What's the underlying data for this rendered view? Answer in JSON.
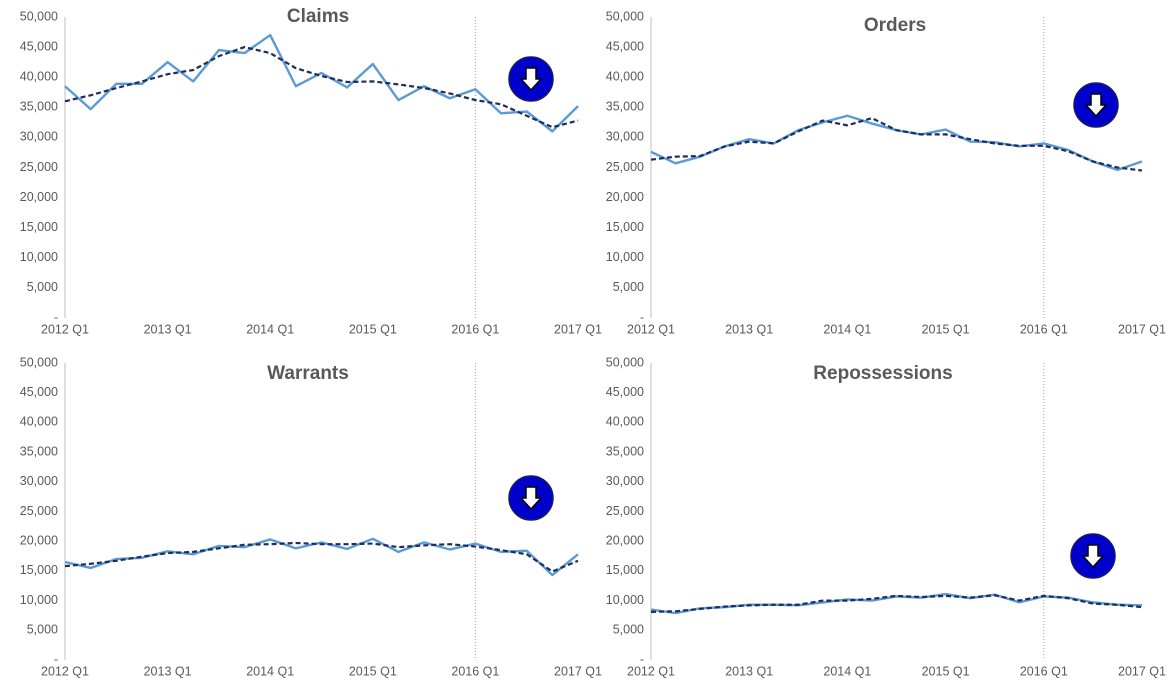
{
  "chart_data": [
    {
      "type": "line",
      "title": "Claims",
      "categories": [
        "2012 Q1",
        null,
        null,
        null,
        "2013 Q1",
        null,
        null,
        null,
        "2014 Q1",
        null,
        null,
        null,
        "2015 Q1",
        null,
        null,
        null,
        "2016 Q1",
        null,
        null,
        null,
        "2017 Q1"
      ],
      "series": [
        {
          "color": "#5b9bd5",
          "values": [
            38500,
            34700,
            38900,
            38900,
            42500,
            39300,
            44500,
            44000,
            47000,
            38500,
            40700,
            38300,
            42200,
            36200,
            38500,
            36500,
            38000,
            34000,
            34300,
            31000,
            35200
          ]
        },
        {
          "color": "#1f2d5a",
          "dash": true,
          "values": [
            36000,
            37000,
            38200,
            39300,
            40500,
            41200,
            43500,
            45000,
            44000,
            41500,
            40200,
            39200,
            39300,
            38800,
            38200,
            37300,
            36200,
            35500,
            33600,
            31700,
            32800
          ]
        }
      ],
      "ylim": [
        0,
        50000
      ],
      "yticks": [
        {
          "value": 0,
          "label": "-"
        },
        {
          "value": 5000,
          "label": "5,000"
        },
        {
          "value": 10000,
          "label": "10,000"
        },
        {
          "value": 15000,
          "label": "15,000"
        },
        {
          "value": 20000,
          "label": "20,000"
        },
        {
          "value": 25000,
          "label": "25,000"
        },
        {
          "value": 30000,
          "label": "30,000"
        },
        {
          "value": 35000,
          "label": "35,000"
        },
        {
          "value": 40000,
          "label": "40,000"
        },
        {
          "value": 45000,
          "label": "45,000"
        },
        {
          "value": 50000,
          "label": "50,000"
        }
      ],
      "vline": "2016 Q1"
    },
    {
      "type": "line",
      "title": "Orders",
      "categories": [
        "2012 Q1",
        null,
        null,
        null,
        "2013 Q1",
        null,
        null,
        null,
        "2014 Q1",
        null,
        null,
        null,
        "2015 Q1",
        null,
        null,
        null,
        "2016 Q1",
        null,
        null,
        null,
        "2017 Q1"
      ],
      "series": [
        {
          "color": "#5b9bd5",
          "values": [
            27600,
            25700,
            26800,
            28500,
            29700,
            29000,
            31200,
            32500,
            33600,
            32300,
            31200,
            30500,
            31300,
            29300,
            29200,
            28500,
            29000,
            27900,
            26000,
            24600,
            26000
          ]
        },
        {
          "color": "#1f2d5a",
          "dash": true,
          "values": [
            26300,
            26800,
            26900,
            28500,
            29300,
            29000,
            31000,
            32800,
            32000,
            33200,
            31200,
            30500,
            30500,
            29700,
            29000,
            28600,
            28600,
            27700,
            26000,
            25000,
            24500
          ]
        }
      ],
      "ylim": [
        0,
        50000
      ],
      "yticks": [
        {
          "value": 0,
          "label": "-"
        },
        {
          "value": 5000,
          "label": "5,000"
        },
        {
          "value": 10000,
          "label": "10,000"
        },
        {
          "value": 15000,
          "label": "15,000"
        },
        {
          "value": 20000,
          "label": "20,000"
        },
        {
          "value": 25000,
          "label": "25,000"
        },
        {
          "value": 30000,
          "label": "30,000"
        },
        {
          "value": 35000,
          "label": "35,000"
        },
        {
          "value": 40000,
          "label": "40,000"
        },
        {
          "value": 45000,
          "label": "45,000"
        },
        {
          "value": 50000,
          "label": "50,000"
        }
      ],
      "vline": "2016 Q1"
    },
    {
      "type": "line",
      "title": "Warrants",
      "categories": [
        "2012 Q1",
        null,
        null,
        null,
        "2013 Q1",
        null,
        null,
        null,
        "2014 Q1",
        null,
        null,
        null,
        "2015 Q1",
        null,
        null,
        null,
        "2016 Q1",
        null,
        null,
        null,
        "2017 Q1"
      ],
      "series": [
        {
          "color": "#5b9bd5",
          "values": [
            16500,
            15500,
            17000,
            17200,
            18300,
            17800,
            19200,
            19000,
            20300,
            18800,
            19800,
            18700,
            20400,
            18200,
            19800,
            18600,
            19600,
            18200,
            18400,
            14300,
            17800
          ]
        },
        {
          "color": "#1f2d5a",
          "dash": true,
          "values": [
            15800,
            16200,
            16700,
            17400,
            18000,
            18200,
            18800,
            19400,
            19500,
            19700,
            19500,
            19500,
            19600,
            19000,
            19300,
            19500,
            19100,
            18500,
            17800,
            14900,
            16700
          ]
        }
      ],
      "ylim": [
        0,
        50000
      ],
      "yticks": [
        {
          "value": 0,
          "label": "-"
        },
        {
          "value": 5000,
          "label": "5,000"
        },
        {
          "value": 10000,
          "label": "10,000"
        },
        {
          "value": 15000,
          "label": "15,000"
        },
        {
          "value": 20000,
          "label": "20,000"
        },
        {
          "value": 25000,
          "label": "25,000"
        },
        {
          "value": 30000,
          "label": "30,000"
        },
        {
          "value": 35000,
          "label": "35,000"
        },
        {
          "value": 40000,
          "label": "40,000"
        },
        {
          "value": 45000,
          "label": "45,000"
        },
        {
          "value": 50000,
          "label": "50,000"
        }
      ],
      "vline": "2016 Q1"
    },
    {
      "type": "line",
      "title": "Repossessions",
      "categories": [
        "2012 Q1",
        null,
        null,
        null,
        "2013 Q1",
        null,
        null,
        null,
        "2014 Q1",
        null,
        null,
        null,
        "2015 Q1",
        null,
        null,
        null,
        "2016 Q1",
        null,
        null,
        null,
        "2017 Q1"
      ],
      "series": [
        {
          "color": "#5b9bd5",
          "values": [
            8500,
            7900,
            8700,
            8900,
            9300,
            9300,
            9200,
            9700,
            10200,
            10000,
            10700,
            10500,
            11100,
            10400,
            11000,
            9700,
            10700,
            10500,
            9700,
            9300,
            9200
          ]
        },
        {
          "color": "#1f2d5a",
          "dash": true,
          "values": [
            8100,
            8200,
            8600,
            9000,
            9200,
            9300,
            9300,
            10000,
            10000,
            10300,
            10800,
            10600,
            10800,
            10500,
            10900,
            10000,
            10800,
            10400,
            9500,
            9300,
            8900
          ]
        }
      ],
      "ylim": [
        0,
        50000
      ],
      "yticks": [
        {
          "value": 0,
          "label": "-"
        },
        {
          "value": 5000,
          "label": "5,000"
        },
        {
          "value": 10000,
          "label": "10,000"
        },
        {
          "value": 15000,
          "label": "15,000"
        },
        {
          "value": 20000,
          "label": "20,000"
        },
        {
          "value": 25000,
          "label": "25,000"
        },
        {
          "value": 30000,
          "label": "30,000"
        },
        {
          "value": 35000,
          "label": "35,000"
        },
        {
          "value": 40000,
          "label": "40,000"
        },
        {
          "value": 45000,
          "label": "45,000"
        },
        {
          "value": 50000,
          "label": "50,000"
        }
      ],
      "vline": "2016 Q1"
    }
  ]
}
